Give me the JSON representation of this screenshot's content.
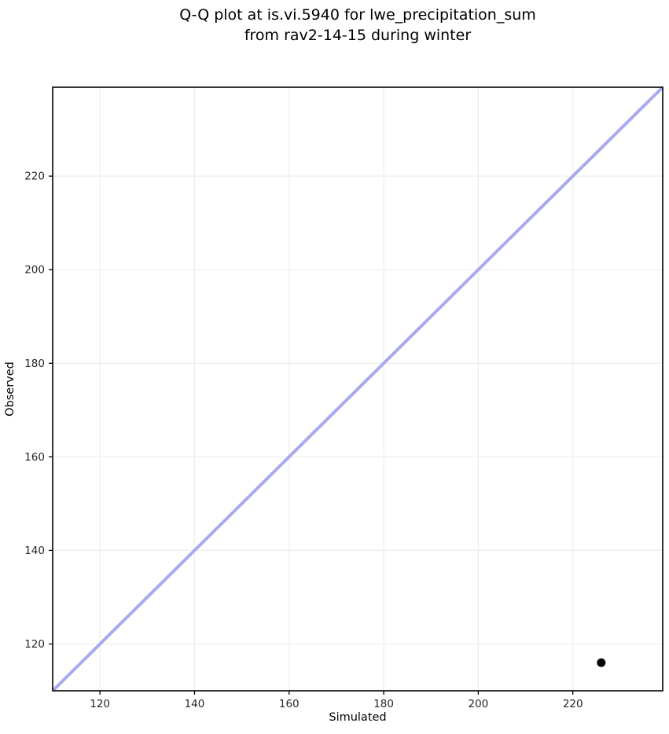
{
  "chart_data": {
    "type": "scatter",
    "title": "Q-Q plot at is.vi.5940 for lwe_precipitation_sum\nfrom rav2-14-15 during winter",
    "title_lines": [
      "Q-Q plot at is.vi.5940 for lwe_precipitation_sum",
      "from rav2-14-15 during winter"
    ],
    "xlabel": "Simulated",
    "ylabel": "Observed",
    "xlim": [
      110,
      239
    ],
    "ylim": [
      110,
      239
    ],
    "xticks": [
      120,
      140,
      160,
      180,
      200,
      220
    ],
    "yticks": [
      120,
      140,
      160,
      180,
      200,
      220
    ],
    "grid": true,
    "legend_position": "none",
    "series": [
      {
        "name": "observed-vs-simulated-quantiles",
        "marker": "circle",
        "marker_color": "#000000",
        "marker_radius": 5.5,
        "points": [
          [
            226,
            116
          ]
        ]
      }
    ],
    "reference_line": {
      "name": "identity-line",
      "from": [
        110,
        110
      ],
      "to": [
        239,
        239
      ],
      "color": "#a9a9ef",
      "width": 4
    },
    "colors": {
      "background": "#ffffff",
      "grid": "#ededed",
      "frame": "#000000",
      "tick_label": "#262626",
      "title": "#000000"
    }
  }
}
